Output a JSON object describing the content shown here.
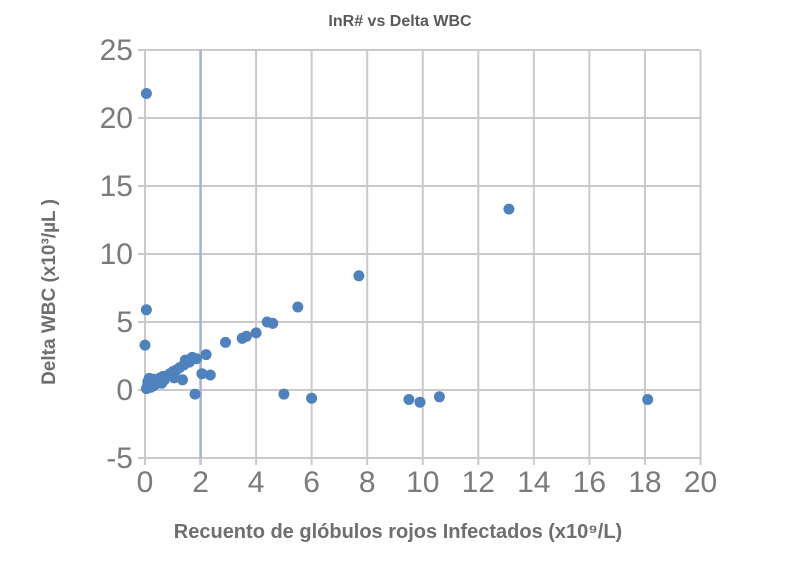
{
  "chart_data": {
    "type": "scatter",
    "title": "InR# vs Delta WBC",
    "xlabel": "Recuento de glóbulos rojos Infectados (x10⁹/L)",
    "ylabel": "Delta WBC (x10³/µL )",
    "xlim": [
      0,
      20
    ],
    "ylim": [
      -5,
      25
    ],
    "x_ticks": [
      0,
      2,
      4,
      6,
      8,
      10,
      12,
      14,
      16,
      18,
      20
    ],
    "y_ticks": [
      -5,
      0,
      5,
      10,
      15,
      20,
      25
    ],
    "grid": true,
    "legend": "none",
    "highlight_vline_x": 2,
    "colors": {
      "marker": "#4f81bd",
      "grid": "#c9c9c9",
      "highlight_vline": "#a8aed8",
      "tick_label": "#7a7a7a",
      "title": "#595959",
      "axis_label": "#6e6e6e",
      "background": "#ffffff"
    },
    "series": [
      {
        "name": "Delta WBC",
        "points": [
          [
            0.05,
            21.8
          ],
          [
            0.05,
            5.9
          ],
          [
            0.0,
            3.3
          ],
          [
            0.05,
            0.1
          ],
          [
            0.1,
            0.35
          ],
          [
            0.1,
            0.6
          ],
          [
            0.15,
            0.85
          ],
          [
            0.2,
            0.2
          ],
          [
            0.25,
            0.5
          ],
          [
            0.3,
            0.3
          ],
          [
            0.3,
            0.8
          ],
          [
            0.35,
            0.6
          ],
          [
            0.4,
            0.45
          ],
          [
            0.45,
            0.75
          ],
          [
            0.5,
            0.6
          ],
          [
            0.55,
            0.9
          ],
          [
            0.6,
            0.5
          ],
          [
            0.65,
            1.0
          ],
          [
            0.7,
            0.75
          ],
          [
            0.8,
            1.05
          ],
          [
            0.9,
            1.2
          ],
          [
            1.0,
            1.35
          ],
          [
            1.05,
            0.9
          ],
          [
            1.15,
            1.5
          ],
          [
            1.25,
            1.65
          ],
          [
            1.35,
            0.75
          ],
          [
            1.4,
            1.85
          ],
          [
            1.45,
            2.2
          ],
          [
            1.6,
            2.05
          ],
          [
            1.7,
            2.4
          ],
          [
            1.85,
            2.3
          ],
          [
            1.8,
            -0.3
          ],
          [
            2.05,
            1.2
          ],
          [
            2.35,
            1.1
          ],
          [
            2.2,
            2.6
          ],
          [
            2.9,
            3.5
          ],
          [
            3.5,
            3.8
          ],
          [
            3.65,
            3.95
          ],
          [
            4.0,
            4.2
          ],
          [
            4.4,
            5.0
          ],
          [
            4.6,
            4.9
          ],
          [
            5.0,
            -0.3
          ],
          [
            5.5,
            6.1
          ],
          [
            6.0,
            -0.6
          ],
          [
            7.7,
            8.4
          ],
          [
            9.5,
            -0.7
          ],
          [
            9.9,
            -0.9
          ],
          [
            10.6,
            -0.5
          ],
          [
            13.1,
            13.3
          ],
          [
            18.1,
            -0.7
          ]
        ]
      }
    ]
  }
}
